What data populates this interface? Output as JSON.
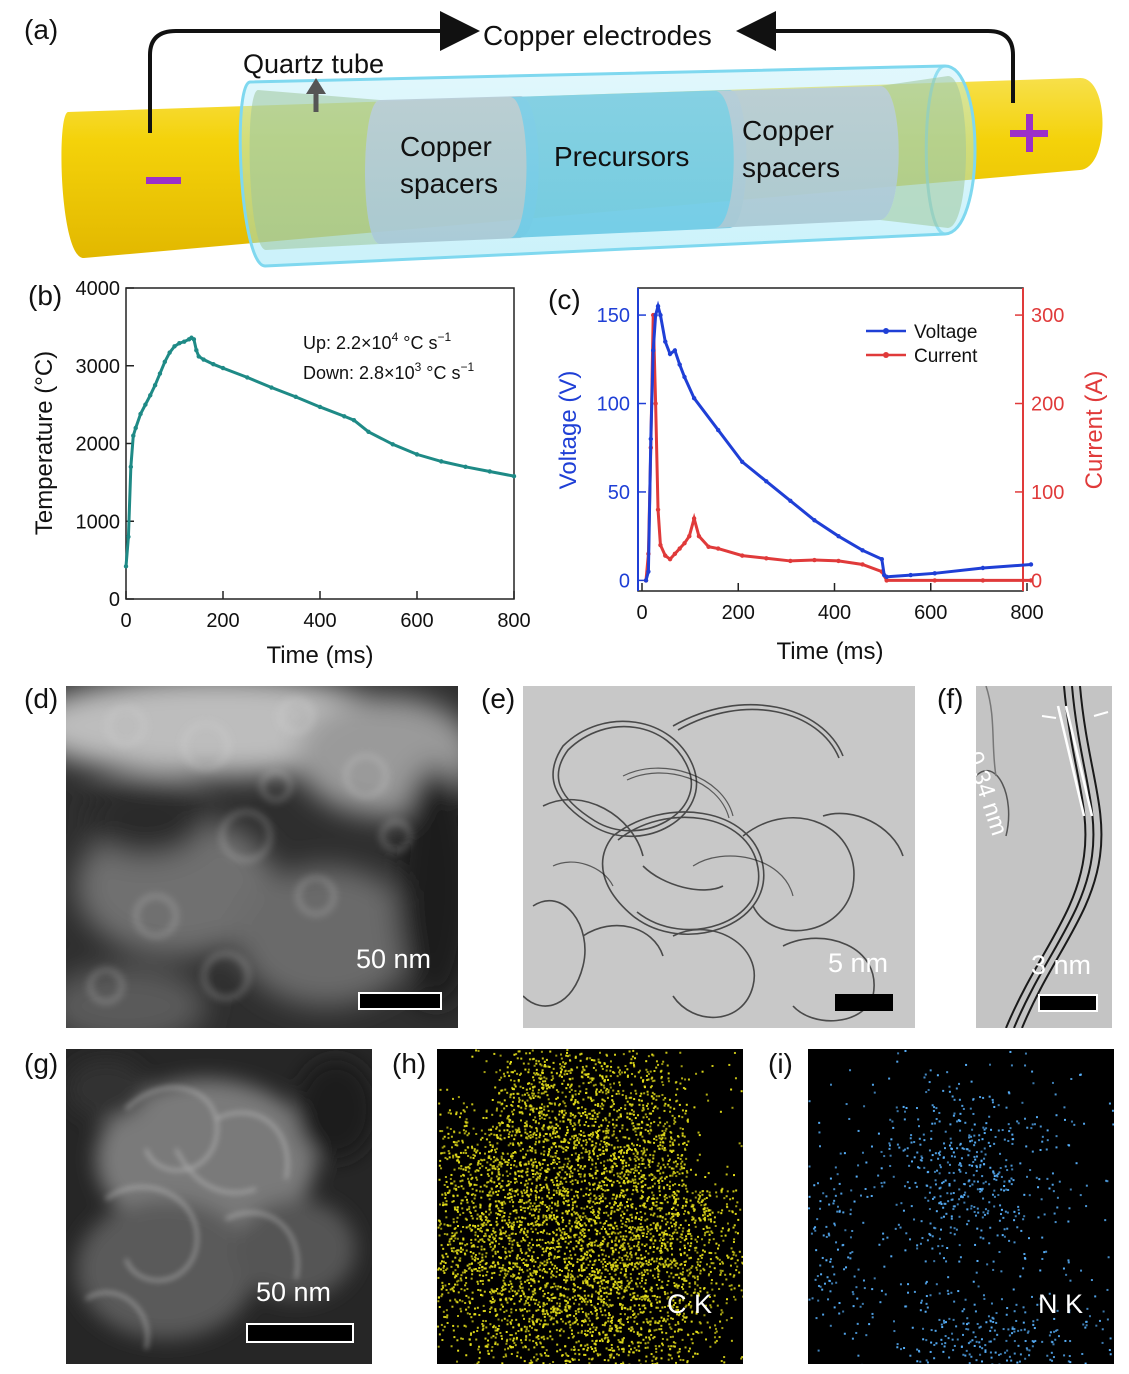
{
  "panels": {
    "a": "(a)",
    "b": "(b)",
    "c": "(c)",
    "d": "(d)",
    "e": "(e)",
    "f": "(f)",
    "g": "(g)",
    "h": "(h)",
    "i": "(i)"
  },
  "schematic": {
    "copper_electrodes": "Copper electrodes",
    "quartz_tube": "Quartz tube",
    "copper_spacers_left_1": "Copper",
    "copper_spacers_left_2": "spacers",
    "precursors": "Precursors",
    "copper_spacers_right_1": "Copper",
    "copper_spacers_right_2": "spacers",
    "minus": "−",
    "plus": "+",
    "colors": {
      "rod": "#f4d20a",
      "tube": "#8fe3f5",
      "precursor": "#4fb5d8",
      "spacer": "#b9b1b8",
      "sign": "#9b30c9"
    }
  },
  "chart_data": [
    {
      "type": "line",
      "panel": "b",
      "xlabel": "Time (ms)",
      "ylabel": "Temperature (°C)",
      "xlim": [
        0,
        800
      ],
      "ylim": [
        0,
        4000
      ],
      "xticks": [
        0,
        200,
        400,
        600,
        800
      ],
      "yticks": [
        0,
        1000,
        2000,
        3000,
        4000
      ],
      "annotations": [
        "Up: 2.2×10",
        "4",
        " °C s",
        "−1",
        "Down: 2.8×10",
        "3",
        " °C s",
        "−1"
      ],
      "series": [
        {
          "color": "#1e8a86",
          "x": [
            0,
            5,
            10,
            15,
            20,
            30,
            40,
            50,
            60,
            70,
            80,
            90,
            100,
            110,
            120,
            130,
            135,
            140,
            145,
            150,
            160,
            180,
            200,
            250,
            300,
            350,
            400,
            450,
            470,
            500,
            550,
            600,
            650,
            700,
            750,
            800
          ],
          "y": [
            420,
            800,
            1700,
            2100,
            2200,
            2380,
            2500,
            2620,
            2750,
            2900,
            3050,
            3170,
            3250,
            3290,
            3310,
            3340,
            3360,
            3340,
            3200,
            3120,
            3080,
            3020,
            2970,
            2850,
            2720,
            2600,
            2470,
            2350,
            2300,
            2150,
            1990,
            1860,
            1770,
            1700,
            1640,
            1580
          ]
        }
      ]
    },
    {
      "type": "line",
      "panel": "c",
      "xlabel": "Time (ms)",
      "ylabel_left": "Voltage (V)",
      "ylabel_right": "Current (A)",
      "xlim": [
        0,
        800
      ],
      "ylim_left": [
        0,
        160
      ],
      "ylim_right": [
        0,
        320
      ],
      "xticks": [
        0,
        200,
        400,
        600,
        800
      ],
      "yticks_left": [
        0,
        50,
        100,
        150
      ],
      "yticks_right": [
        0,
        100,
        200,
        300
      ],
      "legend": "top-right",
      "series": [
        {
          "name": "Voltage",
          "color": "#1f3fd6",
          "axis": "left",
          "x": [
            0,
            5,
            10,
            15,
            20,
            25,
            30,
            40,
            50,
            60,
            70,
            80,
            100,
            150,
            200,
            250,
            300,
            350,
            400,
            450,
            490,
            495,
            500,
            550,
            600,
            700,
            800
          ],
          "y": [
            0,
            5,
            80,
            130,
            150,
            155,
            150,
            135,
            128,
            130,
            122,
            115,
            103,
            85,
            67,
            56,
            45,
            34,
            25,
            17,
            12,
            3,
            2,
            3,
            4,
            7,
            9
          ]
        },
        {
          "name": "Current",
          "color": "#e03a3a",
          "axis": "right",
          "x": [
            0,
            5,
            10,
            15,
            20,
            25,
            30,
            40,
            50,
            60,
            70,
            80,
            90,
            100,
            110,
            130,
            150,
            200,
            250,
            300,
            350,
            400,
            450,
            490,
            500,
            600,
            700,
            800
          ],
          "y": [
            0,
            30,
            150,
            300,
            200,
            80,
            40,
            28,
            24,
            30,
            36,
            42,
            50,
            70,
            50,
            38,
            36,
            28,
            25,
            22,
            23,
            22,
            18,
            10,
            0,
            0,
            0,
            0
          ]
        }
      ]
    }
  ],
  "scalebars": {
    "d": "50 nm",
    "e": "5 nm",
    "f": "3 nm",
    "g": "50 nm"
  },
  "lattice": "0.34 nm",
  "maps": {
    "h": "C K",
    "i": "N K",
    "colors": {
      "h": "#e6e01a",
      "i": "#59b3ff"
    }
  }
}
